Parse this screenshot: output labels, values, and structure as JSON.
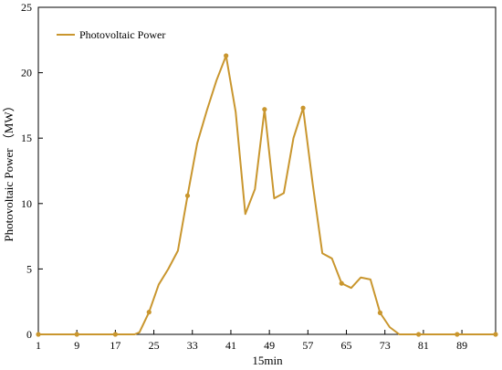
{
  "chart_data": {
    "type": "line",
    "title": "",
    "xlabel": "15min",
    "ylabel": "Photovoltaic Power （MW）",
    "xlim": [
      1,
      96
    ],
    "ylim": [
      0,
      25
    ],
    "x_ticks": [
      1,
      9,
      17,
      25,
      33,
      41,
      49,
      57,
      65,
      73,
      81,
      89
    ],
    "y_ticks": [
      0,
      5,
      10,
      15,
      20,
      25
    ],
    "grid": false,
    "legend_position": "top-left",
    "series": [
      {
        "name": "Photovoltaic Power",
        "color": "#C9962E",
        "x": [
          1,
          9,
          17,
          21,
          22,
          24,
          26,
          28,
          30,
          32,
          34,
          36,
          38,
          40,
          42,
          44,
          46,
          48,
          50,
          52,
          54,
          56,
          58,
          60,
          62,
          64,
          66,
          68,
          70,
          72,
          74,
          76,
          80,
          88,
          96
        ],
        "y": [
          0,
          0,
          0,
          0,
          0.15,
          1.7,
          3.8,
          5.0,
          6.4,
          10.6,
          14.6,
          17.1,
          19.4,
          21.3,
          17.0,
          9.2,
          11.1,
          17.2,
          10.4,
          10.8,
          15.0,
          17.3,
          11.5,
          6.2,
          5.8,
          3.9,
          3.55,
          4.35,
          4.2,
          1.65,
          0.55,
          0,
          0,
          0,
          0
        ],
        "markers_at": [
          1,
          9,
          17,
          24,
          32,
          40,
          48,
          56,
          64,
          72,
          80,
          88,
          96
        ]
      }
    ]
  }
}
